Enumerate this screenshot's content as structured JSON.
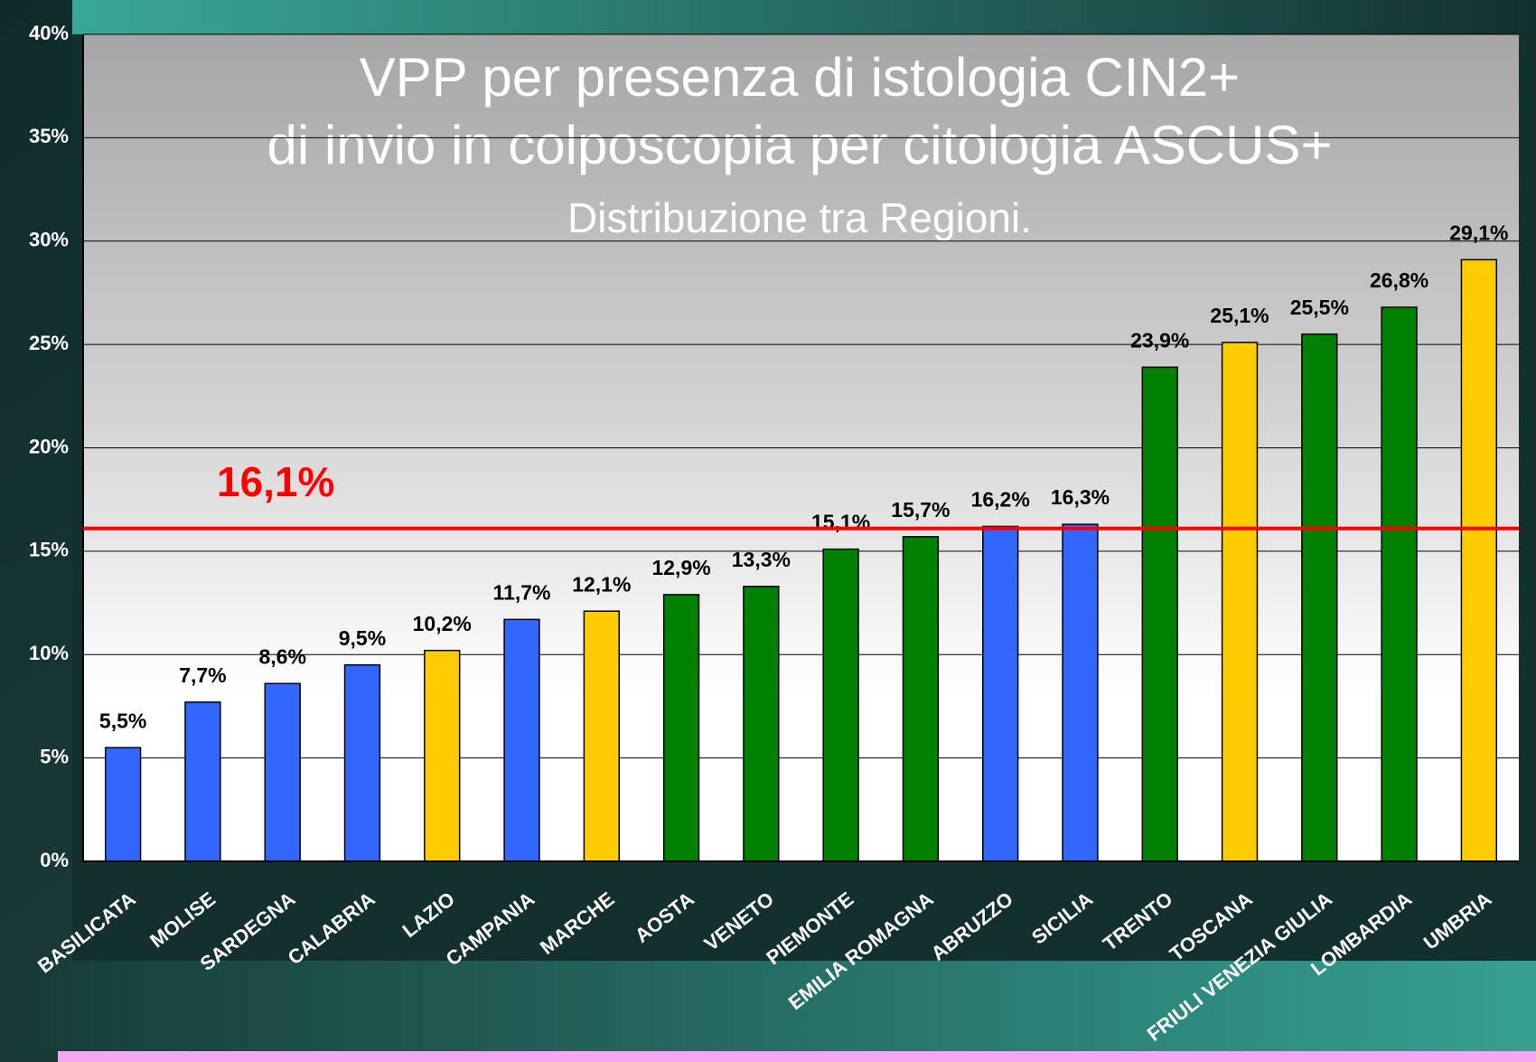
{
  "chart_data": {
    "type": "bar",
    "title": [
      "VPP per presenza di istologia CIN2+",
      "di invio in colposcopia per citologia ASCUS+"
    ],
    "subtitle": "Distribuzione tra Regioni.",
    "categories": [
      "BASILICATA",
      "MOLISE",
      "SARDEGNA",
      "CALABRIA",
      "LAZIO",
      "CAMPANIA",
      "MARCHE",
      "AOSTA",
      "VENETO",
      "PIEMONTE",
      "EMILIA ROMAGNA",
      "ABRUZZO",
      "SICILIA",
      "TRENTO",
      "TOSCANA",
      "FRIULI VENEZIA GIULIA",
      "LOMBARDIA",
      "UMBRIA"
    ],
    "values": [
      5.5,
      7.7,
      8.6,
      9.5,
      10.2,
      11.7,
      12.1,
      12.9,
      13.3,
      15.1,
      15.7,
      16.2,
      16.3,
      23.9,
      25.1,
      25.5,
      26.8,
      29.1
    ],
    "value_labels": [
      "5,5%",
      "7,7%",
      "8,6%",
      "9,5%",
      "10,2%",
      "11,7%",
      "12,1%",
      "12,9%",
      "13,3%",
      "15,1%",
      "15,7%",
      "16,2%",
      "16,3%",
      "23,9%",
      "25,1%",
      "25,5%",
      "26,8%",
      "29,1%"
    ],
    "colors": [
      "#3366ff",
      "#3366ff",
      "#3366ff",
      "#3366ff",
      "#ffcc00",
      "#3366ff",
      "#ffcc00",
      "#008000",
      "#008000",
      "#008000",
      "#008000",
      "#3366ff",
      "#3366ff",
      "#008000",
      "#ffcc00",
      "#008000",
      "#008000",
      "#ffcc00"
    ],
    "reference_line": {
      "value": 16.1,
      "label": "16,1%",
      "color": "#ff0000"
    },
    "ylim": [
      0,
      40
    ],
    "yticks": [
      {
        "value": 0,
        "label": "0%"
      },
      {
        "value": 5,
        "label": "5%"
      },
      {
        "value": 10,
        "label": "10%"
      },
      {
        "value": 15,
        "label": "15%"
      },
      {
        "value": 20,
        "label": "20%"
      },
      {
        "value": 25,
        "label": "25%"
      },
      {
        "value": 30,
        "label": "30%"
      },
      {
        "value": 35,
        "label": "35%"
      },
      {
        "value": 40,
        "label": "40%"
      }
    ],
    "grid": true
  }
}
